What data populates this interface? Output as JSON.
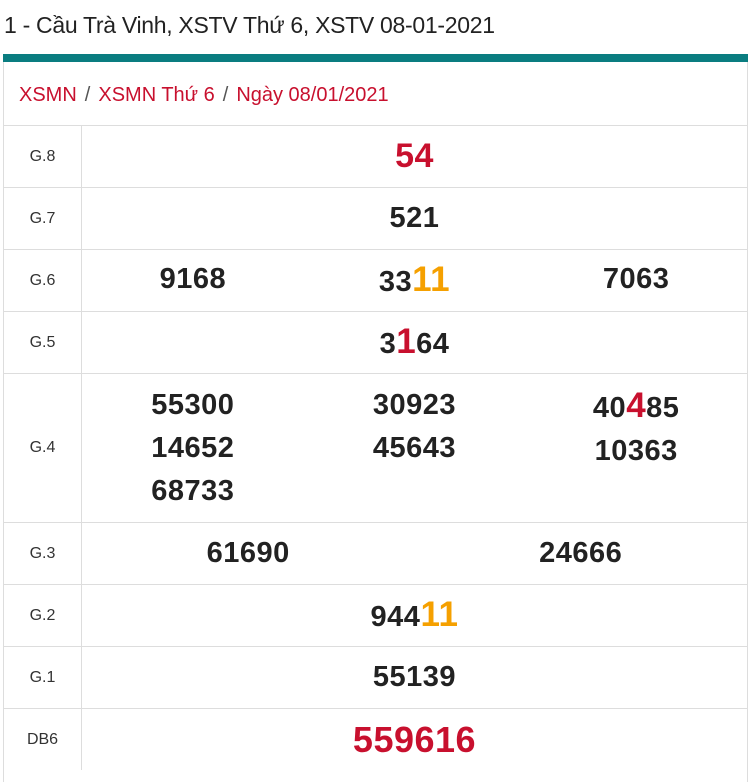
{
  "title": "1 - Cầu Trà Vinh, XSTV Thứ 6, XSTV 08-01-2021",
  "accent": "#0a7d80",
  "breadcrumb": [
    "XSMN",
    "XSMN Thứ 6",
    "Ngày 08/01/2021"
  ],
  "breadcrumb_separator": "/",
  "colors": {
    "orange": "#f5a000",
    "red": "#c8102e"
  },
  "rows": [
    {
      "label": "G.8",
      "style": "big",
      "columns": [
        [
          [
            {
              "t": "54"
            }
          ]
        ]
      ]
    },
    {
      "label": "G.7",
      "columns": [
        [
          [
            {
              "t": "521"
            }
          ]
        ]
      ]
    },
    {
      "label": "G.6",
      "columns": [
        [
          [
            {
              "t": "9168"
            }
          ]
        ],
        [
          [
            {
              "t": "33"
            },
            {
              "t": "11",
              "c": "orange"
            }
          ]
        ],
        [
          [
            {
              "t": "7063"
            }
          ]
        ]
      ]
    },
    {
      "label": "G.5",
      "columns": [
        [
          [
            {
              "t": "3"
            },
            {
              "t": "1",
              "c": "red"
            },
            {
              "t": "64"
            }
          ]
        ]
      ]
    },
    {
      "label": "G.4",
      "columns": [
        [
          [
            {
              "t": "55300"
            }
          ],
          [
            {
              "t": "14652"
            }
          ],
          [
            {
              "t": "68733"
            }
          ]
        ],
        [
          [
            {
              "t": "30923"
            }
          ],
          [
            {
              "t": "45643"
            }
          ]
        ],
        [
          [
            {
              "t": "40"
            },
            {
              "t": "4",
              "c": "red"
            },
            {
              "t": "85"
            }
          ],
          [
            {
              "t": "10363"
            }
          ]
        ]
      ]
    },
    {
      "label": "G.3",
      "columns": [
        [
          [
            {
              "t": "61690"
            }
          ]
        ],
        [
          [
            {
              "t": "24666"
            }
          ]
        ]
      ]
    },
    {
      "label": "G.2",
      "columns": [
        [
          [
            {
              "t": "944"
            },
            {
              "t": "11",
              "c": "orange"
            }
          ]
        ]
      ]
    },
    {
      "label": "G.1",
      "columns": [
        [
          [
            {
              "t": "55139"
            }
          ]
        ]
      ]
    },
    {
      "label": "DB6",
      "style": "db",
      "columns": [
        [
          [
            {
              "t": "559616"
            }
          ]
        ]
      ]
    }
  ]
}
